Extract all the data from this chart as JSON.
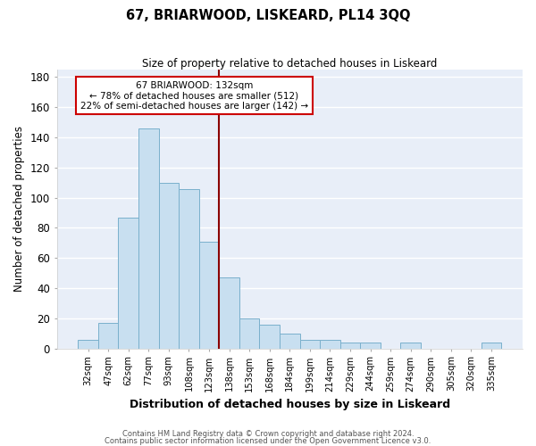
{
  "title": "67, BRIARWOOD, LISKEARD, PL14 3QQ",
  "subtitle": "Size of property relative to detached houses in Liskeard",
  "xlabel": "Distribution of detached houses by size in Liskeard",
  "ylabel": "Number of detached properties",
  "bar_labels": [
    "32sqm",
    "47sqm",
    "62sqm",
    "77sqm",
    "93sqm",
    "108sqm",
    "123sqm",
    "138sqm",
    "153sqm",
    "168sqm",
    "184sqm",
    "199sqm",
    "214sqm",
    "229sqm",
    "244sqm",
    "259sqm",
    "274sqm",
    "290sqm",
    "305sqm",
    "320sqm",
    "335sqm"
  ],
  "bar_values": [
    6,
    17,
    87,
    146,
    110,
    106,
    71,
    47,
    20,
    16,
    10,
    6,
    6,
    4,
    4,
    0,
    4,
    0,
    0,
    0,
    4
  ],
  "bar_color": "#c8dff0",
  "bar_edge_color": "#7ab0cc",
  "ylim": [
    0,
    185
  ],
  "yticks": [
    0,
    20,
    40,
    60,
    80,
    100,
    120,
    140,
    160,
    180
  ],
  "vline_x": 7.0,
  "vline_color": "#8b0000",
  "annotation_title": "67 BRIARWOOD: 132sqm",
  "annotation_line1": "← 78% of detached houses are smaller (512)",
  "annotation_line2": "22% of semi-detached houses are larger (142) →",
  "annotation_box_color": "#ffffff",
  "annotation_box_edge": "#cc0000",
  "footer1": "Contains HM Land Registry data © Crown copyright and database right 2024.",
  "footer2": "Contains public sector information licensed under the Open Government Licence v3.0.",
  "background_color": "#ffffff",
  "plot_background": "#e8eef8"
}
